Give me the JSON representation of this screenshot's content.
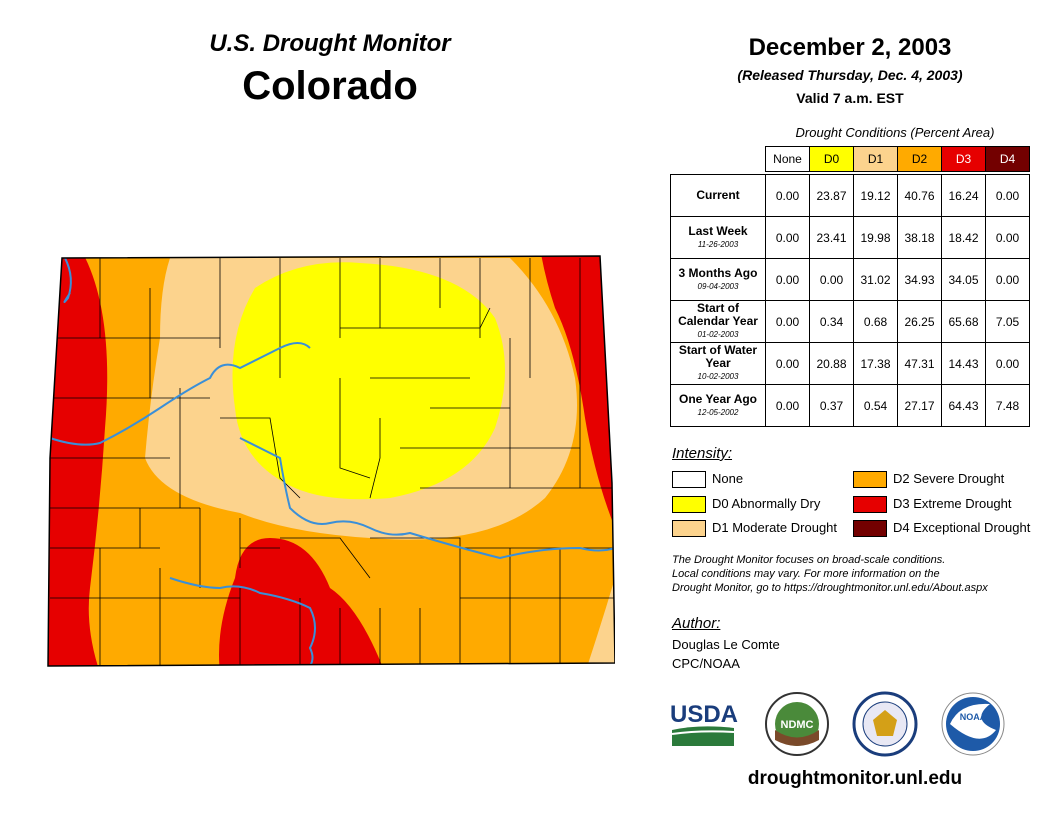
{
  "header": {
    "title": "U.S. Drought Monitor",
    "region": "Colorado",
    "date": "December 2, 2003",
    "released": "(Released Thursday, Dec. 4, 2003)",
    "valid": "Valid 7 a.m. EST"
  },
  "table": {
    "caption": "Drought Conditions (Percent Area)",
    "columns": [
      "None",
      "D0",
      "D1",
      "D2",
      "D3",
      "D4"
    ],
    "column_colors": [
      "#ffffff",
      "#ffff00",
      "#fcd38d",
      "#ffaa00",
      "#e60000",
      "#730000"
    ],
    "rows": [
      {
        "label": "Current",
        "date": "",
        "values": [
          "0.00",
          "23.87",
          "19.12",
          "40.76",
          "16.24",
          "0.00"
        ]
      },
      {
        "label": "Last Week",
        "date": "11-26-2003",
        "values": [
          "0.00",
          "23.41",
          "19.98",
          "38.18",
          "18.42",
          "0.00"
        ]
      },
      {
        "label": "3 Months Ago",
        "date": "09-04-2003",
        "values": [
          "0.00",
          "0.00",
          "31.02",
          "34.93",
          "34.05",
          "0.00"
        ]
      },
      {
        "label": "Start of Calendar Year",
        "date": "01-02-2003",
        "values": [
          "0.00",
          "0.34",
          "0.68",
          "26.25",
          "65.68",
          "7.05"
        ]
      },
      {
        "label": "Start of Water Year",
        "date": "10-02-2003",
        "values": [
          "0.00",
          "20.88",
          "17.38",
          "47.31",
          "14.43",
          "0.00"
        ]
      },
      {
        "label": "One Year Ago",
        "date": "12-05-2002",
        "values": [
          "0.00",
          "0.37",
          "0.54",
          "27.17",
          "64.43",
          "7.48"
        ]
      }
    ]
  },
  "legend": {
    "title": "Intensity:",
    "items": [
      {
        "label": "None",
        "color": "#ffffff"
      },
      {
        "label": "D0 Abnormally Dry",
        "color": "#ffff00"
      },
      {
        "label": "D1 Moderate Drought",
        "color": "#fcd38d"
      },
      {
        "label": "D2 Severe Drought",
        "color": "#ffaa00"
      },
      {
        "label": "D3 Extreme Drought",
        "color": "#e60000"
      },
      {
        "label": "D4 Exceptional Drought",
        "color": "#730000"
      }
    ]
  },
  "note": {
    "line1": "The Drought Monitor focuses on broad-scale conditions.",
    "line2": "Local conditions may vary. For more information on the",
    "line3": "Drought Monitor, go to https://droughtmonitor.unl.edu/About.aspx"
  },
  "author": {
    "title": "Author:",
    "name": "Douglas Le Comte",
    "org": "CPC/NOAA"
  },
  "logos": {
    "usda": "USDA",
    "ndmc": "NDMC",
    "noaa": "NOAA"
  },
  "website": "droughtmonitor.unl.edu"
}
